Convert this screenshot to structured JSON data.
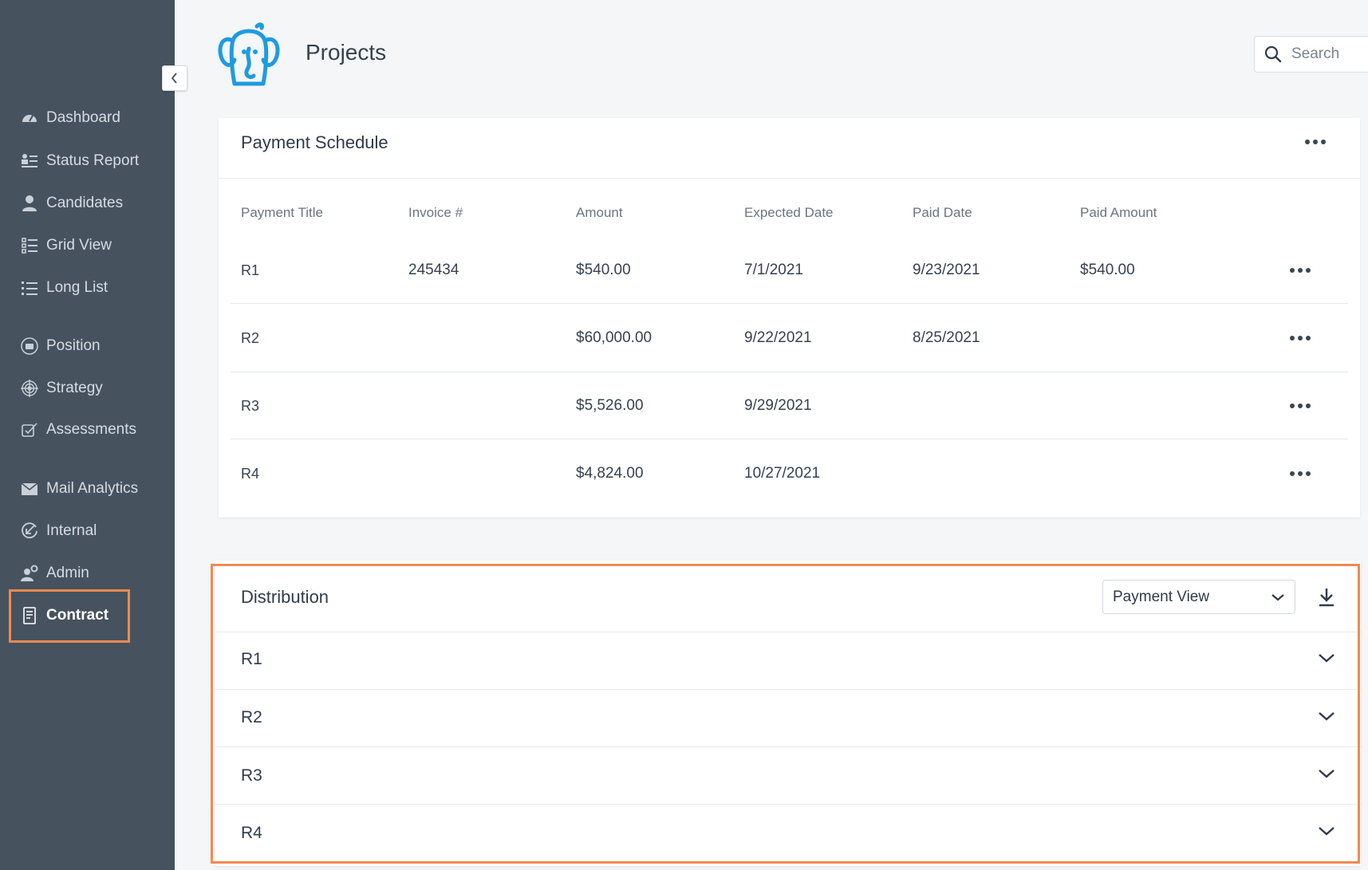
{
  "header": {
    "title": "Projects",
    "search_placeholder": "Search"
  },
  "sidebar": {
    "items": [
      {
        "label": "Dashboard",
        "icon": "dashboard-gauge-icon"
      },
      {
        "label": "Status Report",
        "icon": "status-report-icon"
      },
      {
        "label": "Candidates",
        "icon": "person-icon"
      },
      {
        "label": "Grid View",
        "icon": "grid-view-icon"
      },
      {
        "label": "Long List",
        "icon": "list-icon"
      },
      {
        "label": "Position",
        "icon": "briefcase-icon"
      },
      {
        "label": "Strategy",
        "icon": "target-icon"
      },
      {
        "label": "Assessments",
        "icon": "assessment-icon"
      },
      {
        "label": "Mail Analytics",
        "icon": "mail-icon"
      },
      {
        "label": "Internal",
        "icon": "internal-check-icon"
      },
      {
        "label": "Admin",
        "icon": "admin-gear-user-icon"
      },
      {
        "label": "Contract",
        "icon": "contract-document-icon",
        "active": true
      }
    ]
  },
  "payment_schedule": {
    "title": "Payment Schedule",
    "columns": [
      "Payment Title",
      "Invoice #",
      "Amount",
      "Expected Date",
      "Paid Date",
      "Paid Amount"
    ],
    "rows": [
      {
        "title": "R1",
        "invoice": "245434",
        "amount": "$540.00",
        "expected": "7/1/2021",
        "paid_date": "9/23/2021",
        "paid_amount": "$540.00"
      },
      {
        "title": "R2",
        "invoice": "",
        "amount": "$60,000.00",
        "expected": "9/22/2021",
        "paid_date": "8/25/2021",
        "paid_amount": ""
      },
      {
        "title": "R3",
        "invoice": "",
        "amount": "$5,526.00",
        "expected": "9/29/2021",
        "paid_date": "",
        "paid_amount": ""
      },
      {
        "title": "R4",
        "invoice": "",
        "amount": "$4,824.00",
        "expected": "10/27/2021",
        "paid_date": "",
        "paid_amount": ""
      }
    ]
  },
  "distribution": {
    "title": "Distribution",
    "view_select": "Payment View",
    "rows": [
      "R1",
      "R2",
      "R3",
      "R4"
    ]
  },
  "colors": {
    "sidebar_bg": "#46535f",
    "highlight": "#f08a4f",
    "logo_blue": "#1e9be0"
  }
}
